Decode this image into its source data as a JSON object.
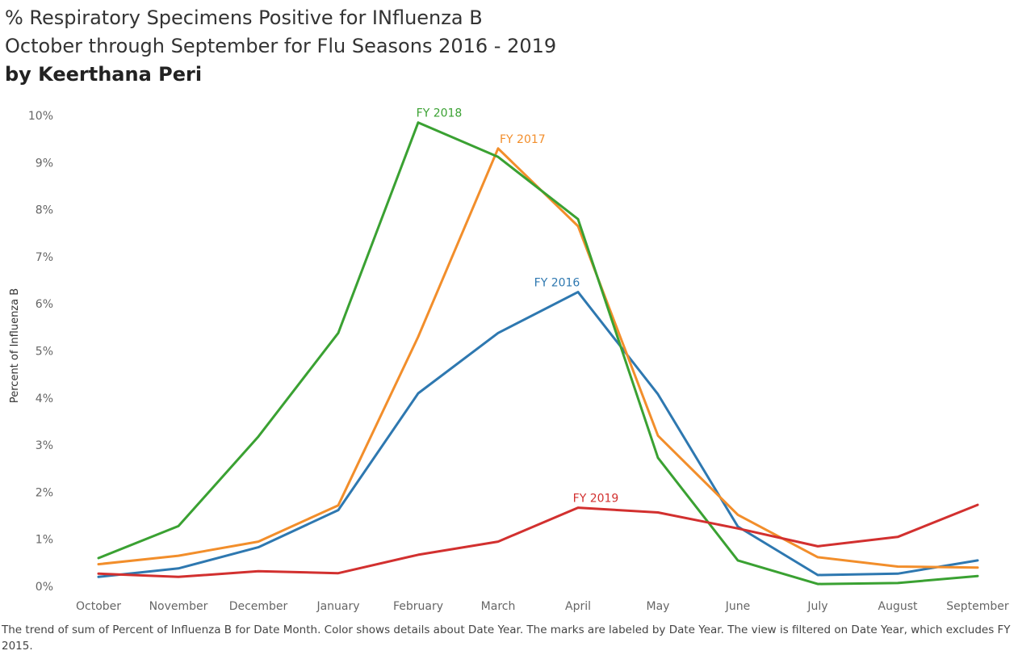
{
  "header": {
    "title_line1": "% Respiratory Specimens Positive for INfluenza B",
    "title_line2": "October through September for Flu Seasons 2016 - 2019",
    "title_line3": "by Keerthana Peri"
  },
  "caption": "The trend of sum of Percent of Influenza B for Date Month.  Color shows details about Date Year.  The marks are labeled by Date Year. The view is filtered on Date Year, which excludes FY 2015.",
  "chart_data": {
    "type": "line",
    "title": "% Respiratory Specimens Positive for INfluenza B",
    "subtitle": "October through September for Flu Seasons 2016 - 2019",
    "xlabel": "",
    "ylabel": "Percent of Influenza B",
    "categories": [
      "October",
      "November",
      "December",
      "January",
      "February",
      "March",
      "April",
      "May",
      "June",
      "July",
      "August",
      "September"
    ],
    "ylim": [
      0,
      10
    ],
    "yticks": [
      0,
      1,
      2,
      3,
      4,
      5,
      6,
      7,
      8,
      9,
      10
    ],
    "ytick_labels": [
      "0%",
      "1%",
      "2%",
      "3%",
      "4%",
      "5%",
      "6%",
      "7%",
      "8%",
      "9%",
      "10%"
    ],
    "grid": false,
    "legend": "none (series labeled on lines)",
    "series": [
      {
        "name": "FY 2016",
        "color": "#2e78b0",
        "label_at": 6,
        "values": [
          0.2,
          0.38,
          0.83,
          1.62,
          4.1,
          5.38,
          6.25,
          4.08,
          1.27,
          0.24,
          0.27,
          0.55
        ]
      },
      {
        "name": "FY 2017",
        "color": "#f28e2b",
        "label_at": 5,
        "values": [
          0.47,
          0.65,
          0.95,
          1.72,
          5.3,
          9.3,
          7.65,
          3.2,
          1.52,
          0.62,
          0.42,
          0.4
        ]
      },
      {
        "name": "FY 2018",
        "color": "#3aa132",
        "label_at": 4,
        "values": [
          0.6,
          1.28,
          3.18,
          5.38,
          9.85,
          9.12,
          7.8,
          2.73,
          0.55,
          0.05,
          0.07,
          0.22
        ]
      },
      {
        "name": "FY 2019",
        "color": "#d2302f",
        "label_at": 6,
        "values": [
          0.27,
          0.2,
          0.32,
          0.28,
          0.67,
          0.95,
          1.67,
          1.57,
          1.23,
          0.85,
          1.05,
          1.73
        ]
      }
    ]
  }
}
